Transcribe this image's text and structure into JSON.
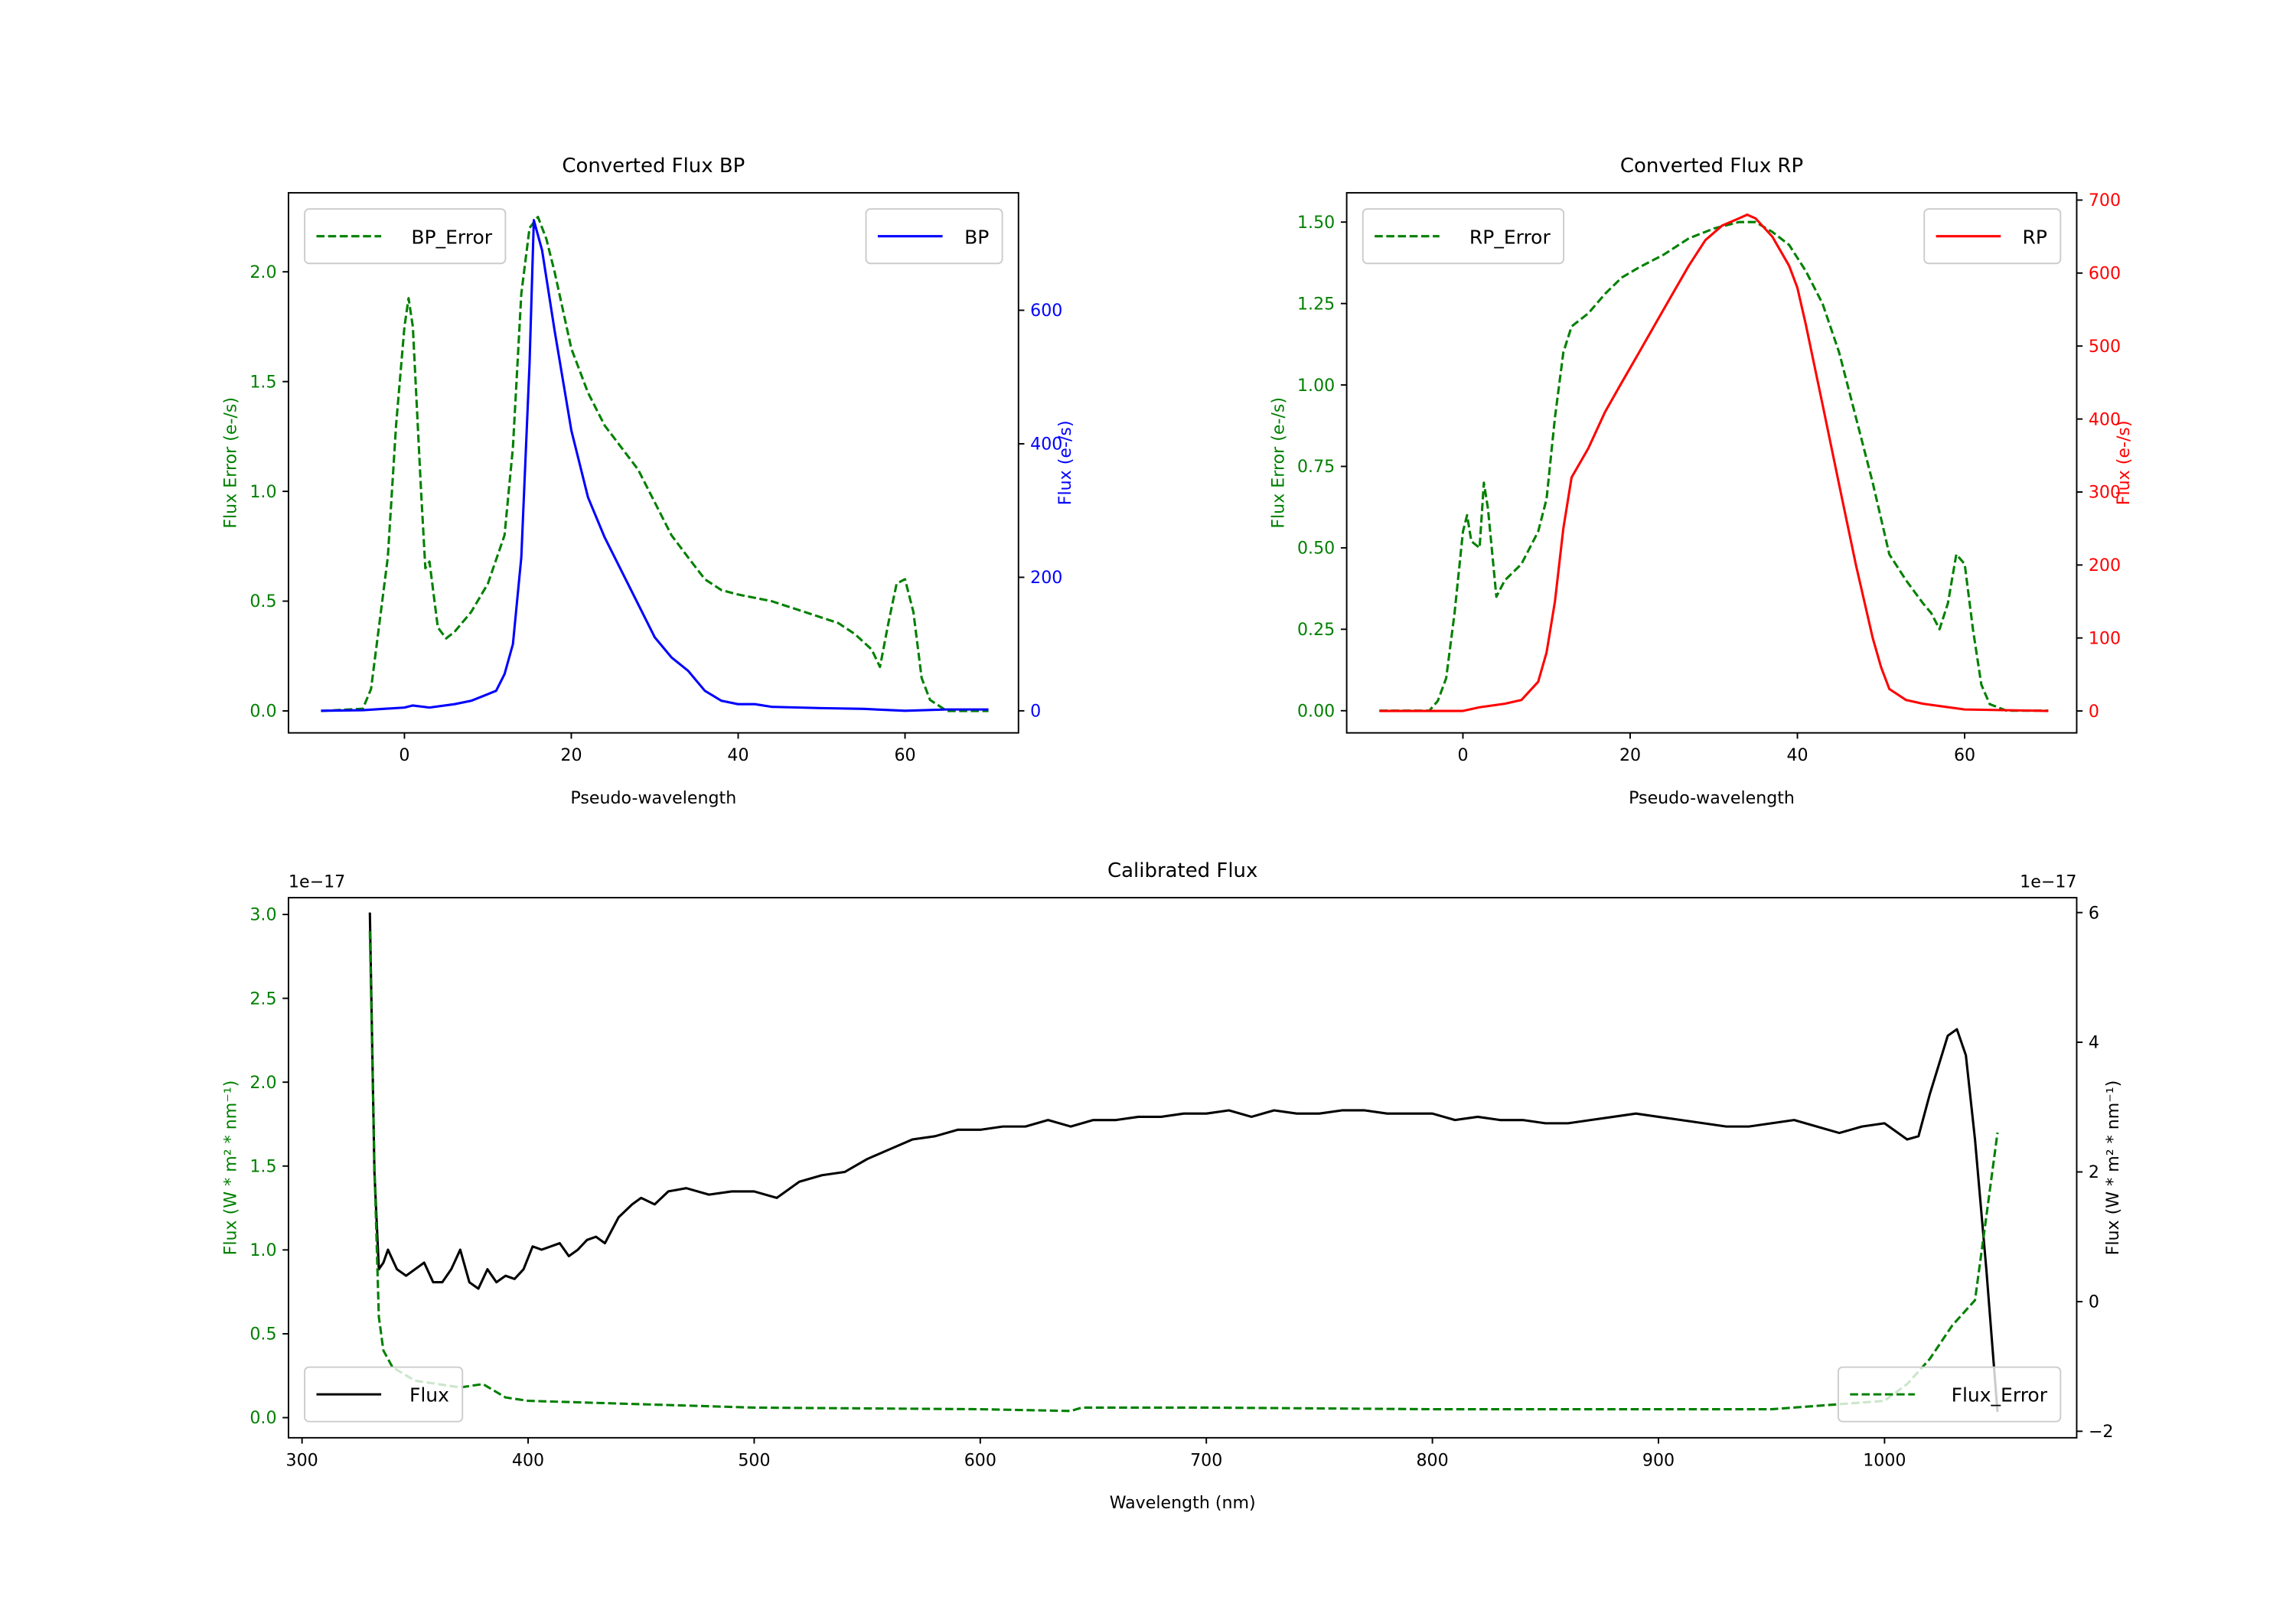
{
  "chart_data": [
    {
      "type": "line",
      "title": "Converted Flux BP",
      "xlabel": "Pseudo-wavelength",
      "xlim": [
        -13.9,
        73.6
      ],
      "xticks": [
        0,
        20,
        40,
        60
      ],
      "left_axis": {
        "label": "Flux Error (e-/s)",
        "color": "#008000",
        "ylim": [
          -0.1,
          2.36
        ],
        "ticks": [
          0.0,
          0.5,
          1.0,
          1.5,
          2.0
        ],
        "tick_labels": [
          "0.0",
          "0.5",
          "1.0",
          "1.5",
          "2.0"
        ]
      },
      "right_axis": {
        "label": "Flux (e-/s)",
        "color": "#0000ff",
        "ylim": [
          -33,
          776
        ],
        "ticks": [
          0,
          200,
          400,
          600
        ],
        "tick_labels": [
          "0",
          "200",
          "400",
          "600"
        ]
      },
      "series": [
        {
          "name": "BP_Error",
          "axis": "left",
          "style": "dashed",
          "color": "#008000",
          "legend": "top-left",
          "x": [
            -10,
            -5,
            -4,
            -2,
            -1,
            0,
            0.5,
            1,
            2,
            2.5,
            3,
            4,
            5,
            6,
            8,
            10,
            12,
            13,
            14,
            15,
            16,
            17,
            18,
            20,
            22,
            24,
            26,
            28,
            30,
            32,
            34,
            36,
            38,
            40,
            44,
            48,
            52,
            54,
            56,
            57,
            58,
            59,
            60,
            61,
            62,
            63,
            65,
            70
          ],
          "y": [
            0,
            0.01,
            0.1,
            0.7,
            1.3,
            1.75,
            1.88,
            1.75,
            1.0,
            0.65,
            0.68,
            0.38,
            0.33,
            0.36,
            0.45,
            0.58,
            0.8,
            1.2,
            1.9,
            2.2,
            2.25,
            2.15,
            2.0,
            1.65,
            1.45,
            1.3,
            1.2,
            1.1,
            0.95,
            0.8,
            0.7,
            0.6,
            0.55,
            0.53,
            0.5,
            0.45,
            0.4,
            0.35,
            0.28,
            0.2,
            0.4,
            0.58,
            0.6,
            0.45,
            0.15,
            0.05,
            0,
            0
          ]
        },
        {
          "name": "BP",
          "axis": "right",
          "style": "solid",
          "color": "#0000ff",
          "legend": "top-right",
          "x": [
            -10,
            -5,
            0,
            1,
            3,
            6,
            8,
            10,
            11,
            12,
            13,
            14,
            15,
            15.5,
            16.5,
            18,
            20,
            22,
            24,
            26,
            28,
            30,
            32,
            34,
            36,
            38,
            40,
            42,
            44,
            50,
            55,
            60,
            65,
            70
          ],
          "y": [
            0,
            1,
            5,
            8,
            5,
            10,
            15,
            25,
            30,
            55,
            100,
            230,
            520,
            735,
            690,
            570,
            420,
            320,
            260,
            210,
            160,
            110,
            80,
            60,
            30,
            15,
            10,
            10,
            6,
            4,
            3,
            0,
            2,
            2
          ]
        }
      ]
    },
    {
      "type": "line",
      "title": "Converted Flux RP",
      "xlabel": "Pseudo-wavelength",
      "xlim": [
        -13.9,
        73.4
      ],
      "xticks": [
        0,
        20,
        40,
        60
      ],
      "left_axis": {
        "label": "Flux Error (e-/s)",
        "color": "#008000",
        "ylim": [
          -0.068,
          1.59
        ],
        "ticks": [
          0.0,
          0.25,
          0.5,
          0.75,
          1.0,
          1.25,
          1.5
        ],
        "tick_labels": [
          "0.00",
          "0.25",
          "0.50",
          "0.75",
          "1.00",
          "1.25",
          "1.50"
        ]
      },
      "right_axis": {
        "label": "Flux (e-/s)",
        "color": "#ff0000",
        "ylim": [
          -30,
          710
        ],
        "ticks": [
          0,
          100,
          200,
          300,
          400,
          500,
          600,
          700
        ],
        "tick_labels": [
          "0",
          "100",
          "200",
          "300",
          "400",
          "500",
          "600",
          "700"
        ]
      },
      "series": [
        {
          "name": "RP_Error",
          "axis": "left",
          "style": "dashed",
          "color": "#008000",
          "legend": "top-left",
          "x": [
            -10,
            -4,
            -3,
            -2,
            -1,
            0,
            0.5,
            1,
            2,
            2.5,
            3,
            4,
            5,
            7,
            9,
            10,
            11,
            12,
            13,
            15,
            17,
            19,
            21,
            24,
            27,
            30,
            33,
            35,
            37,
            39,
            41,
            43,
            45,
            47,
            49,
            51,
            53,
            55,
            56,
            57,
            58,
            59,
            60,
            61,
            62,
            63,
            65,
            70
          ],
          "y": [
            0,
            0,
            0.03,
            0.1,
            0.3,
            0.55,
            0.6,
            0.52,
            0.5,
            0.7,
            0.62,
            0.35,
            0.4,
            0.45,
            0.55,
            0.65,
            0.9,
            1.1,
            1.18,
            1.22,
            1.28,
            1.33,
            1.36,
            1.4,
            1.45,
            1.48,
            1.5,
            1.5,
            1.47,
            1.43,
            1.35,
            1.25,
            1.1,
            0.9,
            0.7,
            0.48,
            0.4,
            0.33,
            0.3,
            0.25,
            0.33,
            0.48,
            0.45,
            0.25,
            0.08,
            0.02,
            0,
            0
          ]
        },
        {
          "name": "RP",
          "axis": "right",
          "style": "solid",
          "color": "#ff0000",
          "legend": "top-right",
          "x": [
            -10,
            0,
            2,
            5,
            7,
            9,
            10,
            11,
            12,
            13,
            15,
            17,
            19,
            21,
            23,
            25,
            27,
            29,
            31,
            33,
            34,
            35,
            37,
            39,
            40,
            41,
            43,
            45,
            47,
            49,
            50,
            51,
            53,
            55,
            60,
            70
          ],
          "y": [
            0,
            0,
            5,
            10,
            15,
            40,
            80,
            150,
            250,
            320,
            360,
            410,
            450,
            490,
            530,
            570,
            610,
            645,
            665,
            675,
            680,
            675,
            650,
            610,
            580,
            530,
            420,
            310,
            200,
            100,
            60,
            30,
            15,
            10,
            2,
            0
          ]
        }
      ]
    },
    {
      "type": "line",
      "title": "Calibrated Flux",
      "xlabel": "Wavelength (nm)",
      "xlim": [
        294,
        1085
      ],
      "xticks": [
        300,
        400,
        500,
        600,
        700,
        800,
        900,
        1000
      ],
      "left_axis": {
        "label": "Flux (W * m² * nm⁻¹)",
        "offset": "1e−17",
        "color": "#008000",
        "ylim": [
          -0.12,
          3.1
        ],
        "ticks": [
          0,
          0.5,
          1,
          1.5,
          2,
          2.5,
          3
        ],
        "tick_labels": [
          "0.0",
          "0.5",
          "1.0",
          "1.5",
          "2.0",
          "2.5",
          "3.0"
        ]
      },
      "right_axis": {
        "label": "Flux (W * m² * nm⁻¹)",
        "offset": "1e−17",
        "color": "#000000",
        "ylim": [
          -2.1,
          6.23
        ],
        "ticks": [
          -2,
          0,
          2,
          4,
          6
        ],
        "tick_labels": [
          "−2",
          "0",
          "2",
          "4",
          "6"
        ]
      },
      "series": [
        {
          "name": "Flux",
          "axis": "right",
          "style": "solid",
          "color": "#000000",
          "legend": "lower-left",
          "x": [
            330,
            332,
            334,
            336,
            338,
            342,
            346,
            350,
            354,
            358,
            362,
            366,
            370,
            374,
            378,
            382,
            386,
            390,
            394,
            398,
            402,
            406,
            410,
            414,
            418,
            422,
            426,
            430,
            434,
            440,
            446,
            450,
            456,
            462,
            470,
            480,
            490,
            500,
            510,
            520,
            530,
            540,
            550,
            560,
            570,
            580,
            590,
            600,
            610,
            620,
            630,
            640,
            650,
            660,
            670,
            680,
            690,
            700,
            710,
            720,
            730,
            740,
            750,
            760,
            770,
            780,
            790,
            800,
            810,
            820,
            830,
            840,
            850,
            860,
            870,
            880,
            890,
            900,
            910,
            920,
            930,
            940,
            950,
            960,
            970,
            980,
            990,
            1000,
            1010,
            1015,
            1020,
            1028,
            1032,
            1036,
            1040,
            1045,
            1050
          ],
          "y": [
            6.0,
            2.0,
            0.5,
            0.6,
            0.8,
            0.5,
            0.4,
            0.5,
            0.6,
            0.3,
            0.3,
            0.5,
            0.8,
            0.3,
            0.2,
            0.5,
            0.3,
            0.4,
            0.35,
            0.5,
            0.85,
            0.8,
            0.85,
            0.9,
            0.7,
            0.8,
            0.95,
            1.0,
            0.9,
            1.3,
            1.5,
            1.6,
            1.5,
            1.7,
            1.75,
            1.65,
            1.7,
            1.7,
            1.6,
            1.85,
            1.95,
            2.0,
            2.2,
            2.35,
            2.5,
            2.55,
            2.65,
            2.65,
            2.7,
            2.7,
            2.8,
            2.7,
            2.8,
            2.8,
            2.85,
            2.85,
            2.9,
            2.9,
            2.95,
            2.85,
            2.95,
            2.9,
            2.9,
            2.95,
            2.95,
            2.9,
            2.9,
            2.9,
            2.8,
            2.85,
            2.8,
            2.8,
            2.75,
            2.75,
            2.8,
            2.85,
            2.9,
            2.85,
            2.8,
            2.75,
            2.7,
            2.7,
            2.75,
            2.8,
            2.7,
            2.6,
            2.7,
            2.75,
            2.5,
            2.55,
            3.2,
            4.1,
            4.2,
            3.8,
            2.5,
            0.5,
            -1.7
          ]
        },
        {
          "name": "Flux_Error",
          "axis": "left",
          "style": "dashed",
          "color": "#008000",
          "legend": "lower-right",
          "x": [
            330,
            332,
            334,
            336,
            340,
            350,
            360,
            370,
            380,
            390,
            400,
            450,
            500,
            600,
            640,
            645,
            700,
            800,
            900,
            950,
            980,
            1000,
            1010,
            1020,
            1030,
            1040,
            1045,
            1050
          ],
          "y": [
            2.9,
            1.5,
            0.6,
            0.4,
            0.3,
            0.22,
            0.2,
            0.18,
            0.2,
            0.12,
            0.1,
            0.08,
            0.06,
            0.05,
            0.04,
            0.06,
            0.06,
            0.05,
            0.05,
            0.05,
            0.08,
            0.1,
            0.2,
            0.35,
            0.55,
            0.7,
            1.2,
            1.7
          ]
        }
      ]
    }
  ]
}
